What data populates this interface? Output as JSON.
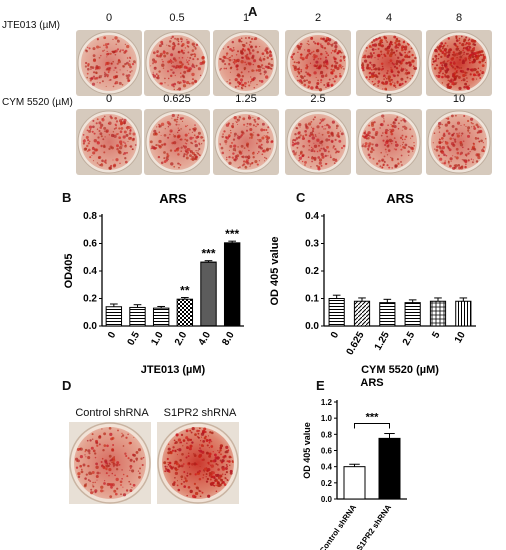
{
  "panel_a": {
    "letter": "A",
    "rows": [
      {
        "label": "JTE013 (µM)",
        "concentrations": [
          "0",
          "0.5",
          "1",
          "2",
          "4",
          "8"
        ],
        "stain_intensity": [
          0.35,
          0.45,
          0.5,
          0.6,
          0.8,
          0.95
        ]
      },
      {
        "label": "CYM 5520 (µM)",
        "concentrations": [
          "0",
          "0.625",
          "1.25",
          "2.5",
          "5",
          "10"
        ],
        "stain_intensity": [
          0.4,
          0.42,
          0.4,
          0.42,
          0.42,
          0.45
        ]
      }
    ]
  },
  "panel_b": {
    "letter": "B"
  },
  "panel_c": {
    "letter": "C"
  },
  "panel_d": {
    "letter": "D",
    "labels": [
      "Control shRNA",
      "S1PR2 shRNA"
    ],
    "stain_intensity": [
      0.5,
      0.95
    ]
  },
  "panel_e": {
    "letter": "E"
  },
  "chart_data": [
    {
      "id": "B",
      "type": "bar",
      "title": "ARS",
      "xlabel": "JTE013 (µM)",
      "ylabel": "OD405",
      "categories": [
        "0",
        "0.5",
        "1.0",
        "2.0",
        "4.0",
        "8.0"
      ],
      "values": [
        0.14,
        0.135,
        0.13,
        0.195,
        0.465,
        0.605
      ],
      "errors": [
        0.02,
        0.02,
        0.012,
        0.012,
        0.01,
        0.012
      ],
      "significance": [
        "",
        "",
        "",
        "**",
        "***",
        "***"
      ],
      "patterns": [
        "hlines",
        "hlines",
        "hlines",
        "checker",
        "dense",
        "solid"
      ],
      "yticks": [
        "0.0",
        "0.2",
        "0.4",
        "0.6",
        "0.8"
      ],
      "ylim": [
        0,
        0.8
      ]
    },
    {
      "id": "C",
      "type": "bar",
      "title": "ARS",
      "xlabel": "CYM 5520 (µM)",
      "ylabel": "OD 405 value",
      "categories": [
        "0",
        "0.625",
        "1.25",
        "2.5",
        "5",
        "10"
      ],
      "values": [
        0.1,
        0.09,
        0.085,
        0.085,
        0.09,
        0.09
      ],
      "errors": [
        0.012,
        0.012,
        0.012,
        0.01,
        0.012,
        0.012
      ],
      "patterns": [
        "hlines",
        "diag",
        "hlines",
        "hlines",
        "grid",
        "vlines"
      ],
      "yticks": [
        "0.0",
        "0.1",
        "0.2",
        "0.3",
        "0.4"
      ],
      "ylim": [
        0,
        0.4
      ]
    },
    {
      "id": "E",
      "type": "bar",
      "title": "ARS",
      "xlabel": "",
      "ylabel": "OD 405 value",
      "categories": [
        "Control shRNA",
        "S1PR2 shRNA"
      ],
      "values": [
        0.4,
        0.75
      ],
      "errors": [
        0.03,
        0.06
      ],
      "patterns": [
        "open",
        "solid"
      ],
      "bracket_label": "***",
      "yticks": [
        "0.0",
        "0.2",
        "0.4",
        "0.6",
        "0.8",
        "1.0",
        "1.2"
      ],
      "ylim": [
        0,
        1.2
      ]
    }
  ]
}
